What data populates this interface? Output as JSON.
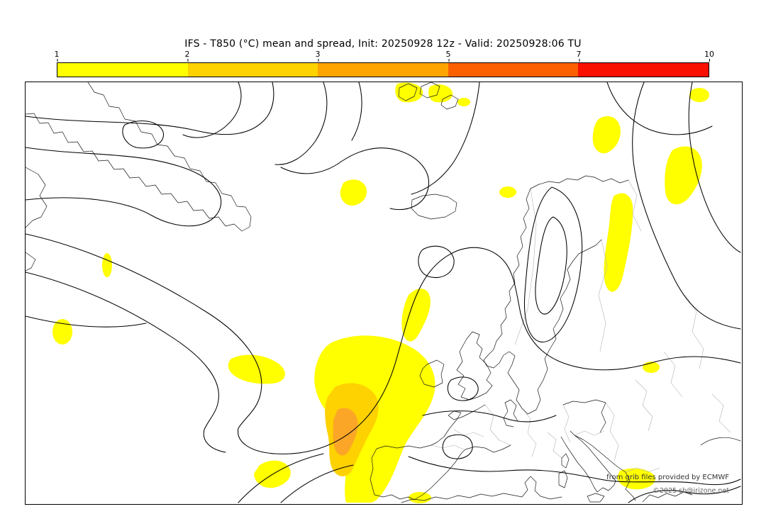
{
  "title": "IFS - T850 (°C) mean and spread, Init: 20250928 12z - Valid: 20250928:06 TU",
  "colorbar": {
    "ticks": [
      "1",
      "2",
      "3",
      "5",
      "7",
      "10"
    ],
    "colors": [
      "#ffff00",
      "#fed100",
      "#fda400",
      "#fc6000",
      "#f91000"
    ]
  },
  "map": {
    "credit_line1": "from grib files provided by ECMWF",
    "credit_line2": "©2025 sb@irizone.net",
    "spread_colors": {
      "low": "#ffff00",
      "mid": "#fed100",
      "high": "#fca628"
    }
  }
}
